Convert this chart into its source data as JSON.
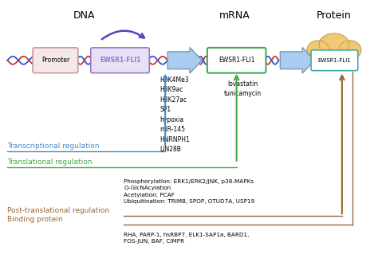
{
  "title_dna": "DNA",
  "title_mrna": "mRNA",
  "title_protein": "Protein",
  "dna_box_label": "EWSR1-FLI1",
  "promoter_label": "Promoter",
  "mrna_box_label": "EWSR1-FLI1",
  "protein_box_label": "EWSR1-FLI1",
  "transcriptional_label": "Transcriptional regulation",
  "translational_label": "Translational regulation",
  "post_translational_label": "Post-translational regulation",
  "binding_label": "Binding protein",
  "transcriptional_color": "#4488cc",
  "translational_color": "#44aa44",
  "post_translational_color": "#996633",
  "binding_color": "#996633",
  "dna_box_color": "#9977cc",
  "dna_box_fill": "#e8e0f5",
  "promoter_box_color": "#cc9999",
  "promoter_box_fill": "#f5e8e8",
  "mrna_box_color": "#44aa55",
  "mrna_box_fill": "#ffffff",
  "protein_box_color": "#44aaaa",
  "protein_box_fill": "#ffffff",
  "cloud_color": "#f0c878",
  "cloud_edge": "#c8963c",
  "arrow_fill": "#aaccee",
  "arrow_edge": "#7799bb",
  "helix_red": "#cc3333",
  "helix_blue": "#3355cc",
  "purple_arrow": "#5544bb",
  "transcriptional_factors": "H3K4Me3\nH3K9ac\nH3K27ac\nSP1\nhypoxia\nmiR-145\nHNRNPH1\nLIN28B",
  "translational_factors": "lovastatin\ntunicamycin",
  "post_translational_factors": "Phosphorylation: ERK1/ERK2/JNK, p38-MAPKs\nO-GlcNAcylation\nAcetylation: PCAF\nUbiquitination: TRIM8, SPOP, OTUD7A, USP19",
  "binding_factors": "RHA, PARP-1, hsRBP7, ELK1-SAP1a, BARD1,\nFOS-JUN, BAF, CIMPR",
  "bg_color": "#ffffff"
}
